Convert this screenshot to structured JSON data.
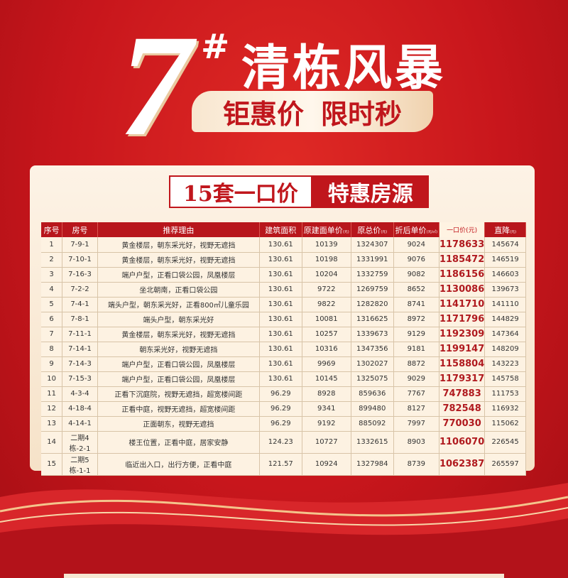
{
  "header": {
    "number": "7",
    "hash": "#",
    "title": "清栋风暴",
    "ribbon": [
      "钜惠价",
      "限时秒"
    ]
  },
  "card": {
    "title_left": "15套一口价",
    "title_right": "特惠房源"
  },
  "table": {
    "columns": [
      {
        "label": "序号",
        "unit": ""
      },
      {
        "label": "房号",
        "unit": ""
      },
      {
        "label": "推荐理由",
        "unit": ""
      },
      {
        "label": "建筑面积",
        "unit": ""
      },
      {
        "label": "原建面单价",
        "unit": "(元)"
      },
      {
        "label": "原总价",
        "unit": "(元)"
      },
      {
        "label": "折后单价",
        "unit": "(元/㎡)"
      },
      {
        "label": "一口价(元)",
        "unit": ""
      },
      {
        "label": "直降",
        "unit": "(元)"
      }
    ],
    "rows": [
      [
        "1",
        "7-9-1",
        "黄金楼层，朝东采光好，视野无遮挡",
        "130.61",
        "10139",
        "1324307",
        "9024",
        "1178633",
        "145674"
      ],
      [
        "2",
        "7-10-1",
        "黄金楼层，朝东采光好，视野无遮挡",
        "130.61",
        "10198",
        "1331991",
        "9076",
        "1185472",
        "146519"
      ],
      [
        "3",
        "7-16-3",
        "端户户型，正看口袋公园，凤凰楼层",
        "130.61",
        "10204",
        "1332759",
        "9082",
        "1186156",
        "146603"
      ],
      [
        "4",
        "7-2-2",
        "坐北朝南，正看口袋公园",
        "130.61",
        "9722",
        "1269759",
        "8652",
        "1130086",
        "139673"
      ],
      [
        "5",
        "7-4-1",
        "端头户型，朝东采光好，正看800㎡儿童乐园",
        "130.61",
        "9822",
        "1282820",
        "8741",
        "1141710",
        "141110"
      ],
      [
        "6",
        "7-8-1",
        "端头户型，朝东采光好",
        "130.61",
        "10081",
        "1316625",
        "8972",
        "1171796",
        "144829"
      ],
      [
        "7",
        "7-11-1",
        "黄金楼层，朝东采光好，视野无遮挡",
        "130.61",
        "10257",
        "1339673",
        "9129",
        "1192309",
        "147364"
      ],
      [
        "8",
        "7-14-1",
        "朝东采光好，视野无遮挡",
        "130.61",
        "10316",
        "1347356",
        "9181",
        "1199147",
        "148209"
      ],
      [
        "9",
        "7-14-3",
        "端户户型，正看口袋公园，凤凰楼层",
        "130.61",
        "9969",
        "1302027",
        "8872",
        "1158804",
        "143223"
      ],
      [
        "10",
        "7-15-3",
        "端户户型，正看口袋公园，凤凰楼层",
        "130.61",
        "10145",
        "1325075",
        "9029",
        "1179317",
        "145758"
      ],
      [
        "11",
        "4-3-4",
        "正看下沉庭院，视野无遮挡，超宽楼间距",
        "96.29",
        "8928",
        "859636",
        "7767",
        "747883",
        "111753"
      ],
      [
        "12",
        "4-18-4",
        "正看中庭，视野无遮挡，超宽楼间距",
        "96.29",
        "9341",
        "899480",
        "8127",
        "782548",
        "116932"
      ],
      [
        "13",
        "4-14-1",
        "正面朝东，视野无遮挡",
        "96.29",
        "9192",
        "885092",
        "7997",
        "770030",
        "115062"
      ],
      [
        "14",
        "二期4栋-2-1",
        "楼王位置，正看中庭，居家安静",
        "124.23",
        "10727",
        "1332615",
        "8903",
        "1106070",
        "226545"
      ],
      [
        "15",
        "二期5栋-1-1",
        "临近出入口，出行方便，正看中庭",
        "121.57",
        "10924",
        "1327984",
        "8739",
        "1062387",
        "265597"
      ]
    ]
  },
  "colors": {
    "brand_red": "#c0161c",
    "gold": "#f0d2ae"
  }
}
